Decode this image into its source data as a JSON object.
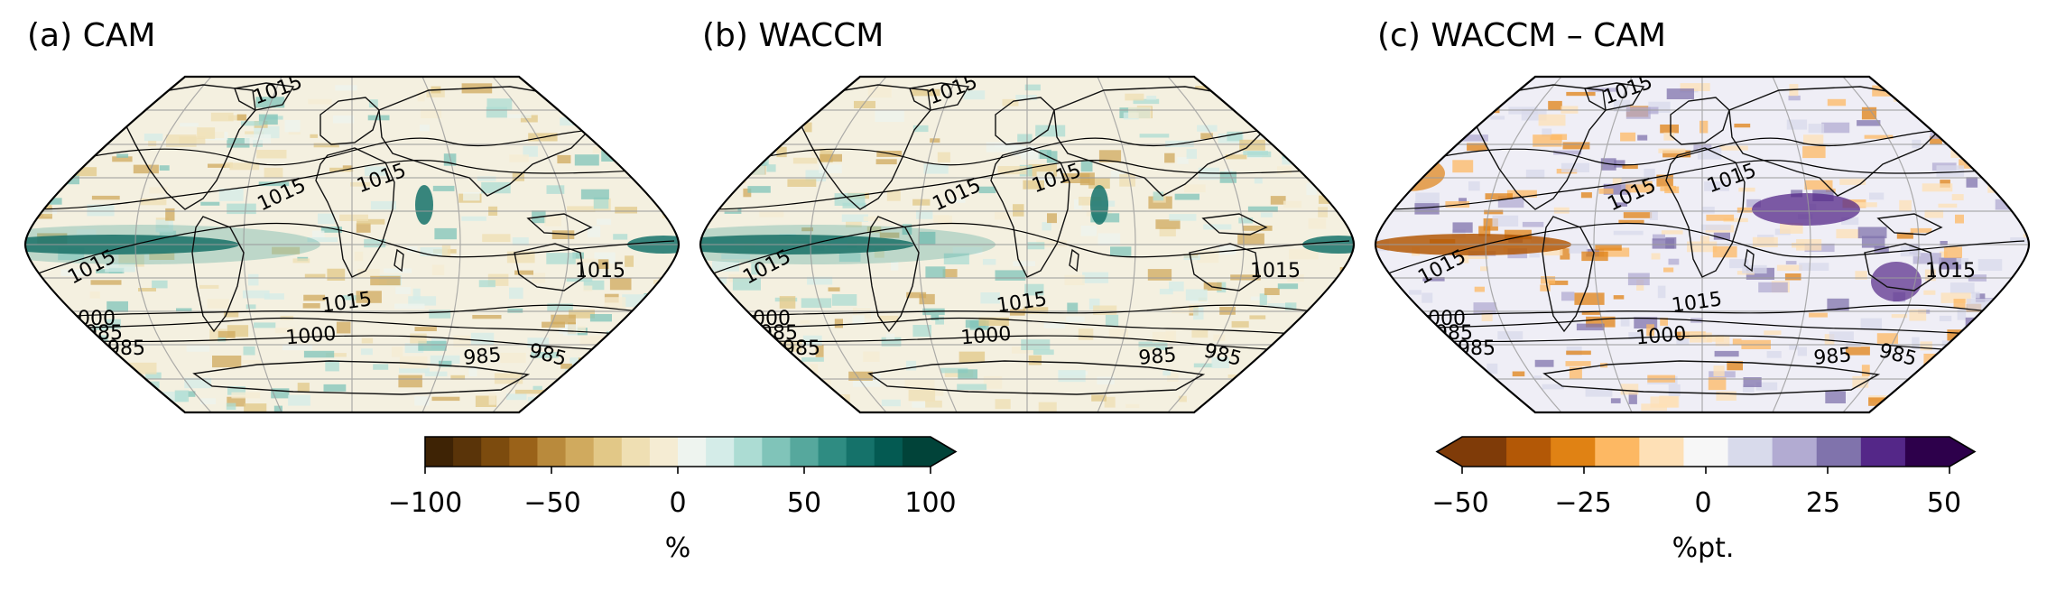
{
  "panels": [
    {
      "id": "a",
      "title": "(a) CAM",
      "scheme": "brbg",
      "contour_labels": [
        "1015",
        "1015",
        "1015",
        "1015",
        "1015",
        "1015",
        "1015",
        "1000",
        "1000",
        "985",
        "985",
        "985",
        "985"
      ]
    },
    {
      "id": "b",
      "title": "(b) WACCM",
      "scheme": "brbg",
      "contour_labels": [
        "1015",
        "1015",
        "1015",
        "1015",
        "1015",
        "1015",
        "1015",
        "1000",
        "1000",
        "985",
        "985",
        "985",
        "985"
      ]
    },
    {
      "id": "c",
      "title": "(c) WACCM – CAM",
      "scheme": "puor",
      "contour_labels": [
        "1015",
        "1015",
        "1015",
        "1015",
        "1015",
        "1015",
        "1015",
        "1000",
        "1000",
        "985",
        "985",
        "985",
        "985"
      ]
    }
  ],
  "colorbars": [
    {
      "id": "brbg",
      "ticks": [
        "−100",
        "−50",
        "0",
        "50",
        "100"
      ],
      "unit": "%",
      "extend": "max",
      "colors": [
        "#3e2305",
        "#5a3409",
        "#7c4b0e",
        "#9a6219",
        "#b98a3c",
        "#d0aa5e",
        "#e2c887",
        "#efdfb3",
        "#f5ecd3",
        "#eef4ef",
        "#d4ece8",
        "#acdcd3",
        "#80c4b9",
        "#56a89d",
        "#2f8c82",
        "#15726a",
        "#045a52",
        "#014339"
      ]
    },
    {
      "id": "puor",
      "ticks": [
        "−50",
        "−25",
        "0",
        "25",
        "50"
      ],
      "unit": "%pt.",
      "extend": "both",
      "colors": [
        "#7f3b08",
        "#b35806",
        "#e08214",
        "#fdb863",
        "#fee0b6",
        "#f7f7f7",
        "#d8daeb",
        "#b2abd2",
        "#8073ac",
        "#542788",
        "#2d004b"
      ]
    }
  ]
}
